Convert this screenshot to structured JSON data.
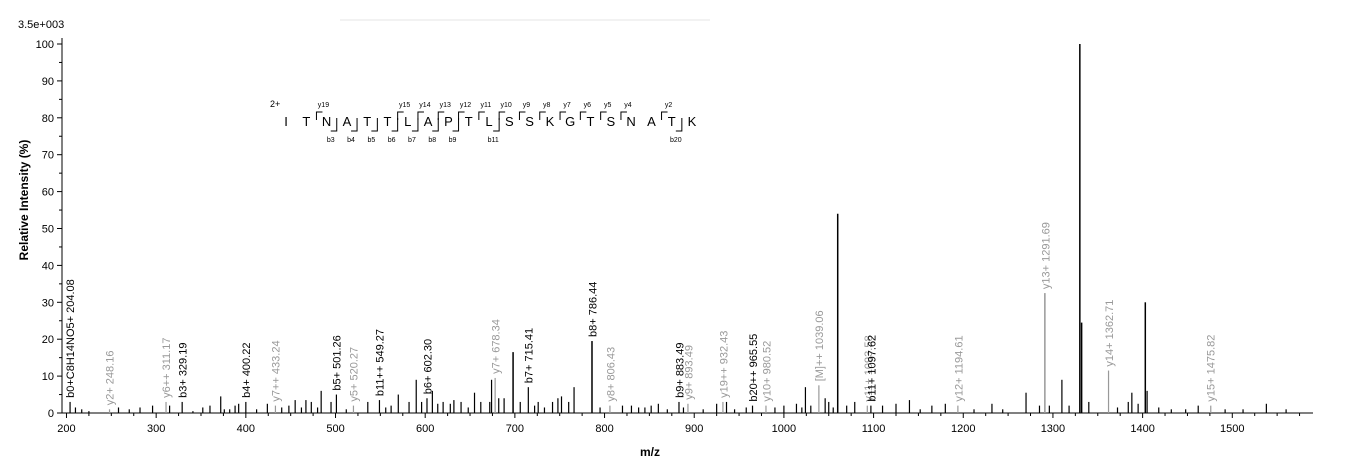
{
  "chart_data": {
    "type": "bar",
    "scale_label": "3.5e+003",
    "xlabel": "m/z",
    "ylabel": "Relative   Intensity (%)",
    "xlim": [
      195,
      1590
    ],
    "ylim": [
      0,
      100
    ],
    "xticks": [
      200,
      300,
      400,
      500,
      600,
      700,
      800,
      900,
      1000,
      1100,
      1200,
      1300,
      1400,
      1500
    ],
    "yticks": [
      0,
      10,
      20,
      30,
      40,
      50,
      60,
      70,
      80,
      90,
      100
    ],
    "colors": {
      "b_ion": "#000000",
      "y_ion": "#999999",
      "unlabeled": "#000000"
    },
    "peaks": [
      [
        204,
        3,
        "b"
      ],
      [
        210,
        1.5,
        "u"
      ],
      [
        217,
        1,
        "u"
      ],
      [
        225,
        0.5,
        "u"
      ],
      [
        248,
        1,
        "y"
      ],
      [
        258,
        1.5,
        "u"
      ],
      [
        270,
        1,
        "u"
      ],
      [
        282,
        1.5,
        "u"
      ],
      [
        296,
        2,
        "u"
      ],
      [
        311,
        3,
        "y"
      ],
      [
        315,
        2,
        "u"
      ],
      [
        329,
        3,
        "b"
      ],
      [
        341,
        0.5,
        "u"
      ],
      [
        352,
        1.5,
        "u"
      ],
      [
        360,
        2,
        "u"
      ],
      [
        372,
        4.5,
        "u"
      ],
      [
        376,
        1,
        "u"
      ],
      [
        382,
        1,
        "u"
      ],
      [
        388,
        2,
        "u"
      ],
      [
        392,
        2.5,
        "u"
      ],
      [
        400,
        3,
        "b"
      ],
      [
        412,
        1,
        "u"
      ],
      [
        424,
        2.5,
        "u"
      ],
      [
        433,
        2,
        "y"
      ],
      [
        440,
        1.5,
        "u"
      ],
      [
        448,
        2,
        "u"
      ],
      [
        455,
        3.5,
        "u"
      ],
      [
        462,
        1.5,
        "u"
      ],
      [
        467,
        3.5,
        "u"
      ],
      [
        473,
        3,
        "u"
      ],
      [
        480,
        1.5,
        "u"
      ],
      [
        484,
        6,
        "u"
      ],
      [
        495,
        3,
        "u"
      ],
      [
        501,
        5,
        "b"
      ],
      [
        512,
        1,
        "u"
      ],
      [
        520,
        2,
        "y"
      ],
      [
        536,
        3,
        "u"
      ],
      [
        549,
        3.5,
        "b"
      ],
      [
        556,
        1.5,
        "u"
      ],
      [
        562,
        2,
        "u"
      ],
      [
        570,
        5,
        "u"
      ],
      [
        582,
        3,
        "u"
      ],
      [
        590,
        9,
        "u"
      ],
      [
        596,
        3,
        "u"
      ],
      [
        602,
        4,
        "b"
      ],
      [
        608,
        6,
        "u"
      ],
      [
        614,
        2.5,
        "u"
      ],
      [
        620,
        3,
        "u"
      ],
      [
        628,
        2.5,
        "u"
      ],
      [
        632,
        3.5,
        "u"
      ],
      [
        640,
        3,
        "u"
      ],
      [
        648,
        1.5,
        "u"
      ],
      [
        655,
        5.5,
        "u"
      ],
      [
        662,
        3,
        "u"
      ],
      [
        672,
        3,
        "u"
      ],
      [
        674,
        9,
        "u"
      ],
      [
        678,
        9.5,
        "y"
      ],
      [
        682,
        4,
        "u"
      ],
      [
        688,
        4,
        "u"
      ],
      [
        698,
        16.5,
        "u"
      ],
      [
        706,
        3,
        "u"
      ],
      [
        715,
        7,
        "b"
      ],
      [
        722,
        2,
        "u"
      ],
      [
        726,
        3,
        "u"
      ],
      [
        733,
        1.5,
        "u"
      ],
      [
        742,
        3,
        "u"
      ],
      [
        748,
        4,
        "u"
      ],
      [
        752,
        4.5,
        "u"
      ],
      [
        760,
        3,
        "u"
      ],
      [
        766,
        7,
        "u"
      ],
      [
        786,
        19.5,
        "b"
      ],
      [
        795,
        1.5,
        "u"
      ],
      [
        806,
        2,
        "y"
      ],
      [
        820,
        2,
        "u"
      ],
      [
        830,
        2,
        "u"
      ],
      [
        838,
        1.5,
        "u"
      ],
      [
        845,
        1.5,
        "u"
      ],
      [
        852,
        2,
        "u"
      ],
      [
        860,
        2.5,
        "u"
      ],
      [
        870,
        1,
        "u"
      ],
      [
        883,
        3,
        "b"
      ],
      [
        888,
        1.5,
        "u"
      ],
      [
        893,
        2.5,
        "y"
      ],
      [
        910,
        1,
        "u"
      ],
      [
        925,
        2.5,
        "u"
      ],
      [
        932,
        3,
        "y"
      ],
      [
        936,
        3,
        "u"
      ],
      [
        945,
        1,
        "u"
      ],
      [
        958,
        1.5,
        "u"
      ],
      [
        965,
        2,
        "b"
      ],
      [
        980,
        2,
        "y"
      ],
      [
        990,
        1.5,
        "u"
      ],
      [
        1000,
        2,
        "u"
      ],
      [
        1014,
        2.5,
        "u"
      ],
      [
        1020,
        1.5,
        "u"
      ],
      [
        1024,
        7,
        "u"
      ],
      [
        1030,
        2,
        "u"
      ],
      [
        1039,
        7.5,
        "y"
      ],
      [
        1046,
        4,
        "u"
      ],
      [
        1050,
        3,
        "u"
      ],
      [
        1055,
        1.5,
        "u"
      ],
      [
        1060,
        54,
        "u"
      ],
      [
        1070,
        2,
        "u"
      ],
      [
        1079,
        3,
        "u"
      ],
      [
        1093,
        2,
        "y"
      ],
      [
        1097,
        2,
        "b"
      ],
      [
        1110,
        2,
        "u"
      ],
      [
        1125,
        2.5,
        "u"
      ],
      [
        1140,
        3.5,
        "u"
      ],
      [
        1152,
        1,
        "u"
      ],
      [
        1165,
        2,
        "u"
      ],
      [
        1180,
        2.5,
        "u"
      ],
      [
        1194,
        2,
        "y"
      ],
      [
        1212,
        1,
        "u"
      ],
      [
        1232,
        2.5,
        "u"
      ],
      [
        1244,
        1,
        "u"
      ],
      [
        1270,
        5.5,
        "u"
      ],
      [
        1285,
        2,
        "u"
      ],
      [
        1291,
        32.5,
        "y"
      ],
      [
        1296,
        2,
        "u"
      ],
      [
        1310,
        9,
        "u"
      ],
      [
        1318,
        2,
        "u"
      ],
      [
        1330,
        100,
        "u"
      ],
      [
        1332,
        24.5,
        "u"
      ],
      [
        1340,
        3,
        "u"
      ],
      [
        1362,
        11.5,
        "y"
      ],
      [
        1372,
        1.5,
        "u"
      ],
      [
        1384,
        3,
        "u"
      ],
      [
        1388,
        5.5,
        "u"
      ],
      [
        1395,
        2.5,
        "u"
      ],
      [
        1403,
        30,
        "u"
      ],
      [
        1405,
        6,
        "u"
      ],
      [
        1418,
        1.5,
        "u"
      ],
      [
        1432,
        1,
        "u"
      ],
      [
        1448,
        1,
        "u"
      ],
      [
        1462,
        2,
        "u"
      ],
      [
        1476,
        2,
        "y"
      ],
      [
        1492,
        1,
        "u"
      ],
      [
        1512,
        1,
        "u"
      ],
      [
        1538,
        2.5,
        "u"
      ],
      [
        1560,
        1,
        "u"
      ]
    ],
    "annotations": [
      {
        "mz": 204.08,
        "text": "b0+C8H14NO5+ 204.08",
        "type": "b"
      },
      {
        "mz": 248.16,
        "text": "y2+ 248.16",
        "type": "y"
      },
      {
        "mz": 311.17,
        "text": "y6++ 311.17",
        "type": "y"
      },
      {
        "mz": 329.19,
        "text": "b3+ 329.19",
        "type": "b"
      },
      {
        "mz": 400.22,
        "text": "b4+ 400.22",
        "type": "b"
      },
      {
        "mz": 433.24,
        "text": "y7++ 433.24",
        "type": "y"
      },
      {
        "mz": 501.26,
        "text": "b5+ 501.26",
        "type": "b"
      },
      {
        "mz": 520.27,
        "text": "y5+ 520.27",
        "type": "y"
      },
      {
        "mz": 549.27,
        "text": "b11++ 549.27",
        "type": "b"
      },
      {
        "mz": 602.3,
        "text": "b6+ 602.30",
        "type": "b"
      },
      {
        "mz": 678.34,
        "text": "y7+ 678.34",
        "type": "y"
      },
      {
        "mz": 715.41,
        "text": "b7+ 715.41",
        "type": "b"
      },
      {
        "mz": 786.44,
        "text": "b8+ 786.44",
        "type": "b"
      },
      {
        "mz": 806.43,
        "text": "y8+ 806.43",
        "type": "y"
      },
      {
        "mz": 883.49,
        "text": "b9+ 883.49",
        "type": "b"
      },
      {
        "mz": 893.49,
        "text": "y9+ 893.49",
        "type": "y"
      },
      {
        "mz": 932.43,
        "text": "y19++ 932.43",
        "type": "y"
      },
      {
        "mz": 965.55,
        "text": "b20++ 965.55",
        "type": "b"
      },
      {
        "mz": 980.52,
        "text": "y10+ 980.52",
        "type": "y"
      },
      {
        "mz": 1039.06,
        "text": "[M]++ 1039.06",
        "type": "y"
      },
      {
        "mz": 1093.58,
        "text": "y11+ 1093.58",
        "type": "y"
      },
      {
        "mz": 1097.62,
        "text": "b11+ 1097.62",
        "type": "b"
      },
      {
        "mz": 1194.61,
        "text": "y12+ 1194.61",
        "type": "y"
      },
      {
        "mz": 1291.69,
        "text": "y13+ 1291.69",
        "type": "y"
      },
      {
        "mz": 1362.71,
        "text": "y14+ 1362.71",
        "type": "y"
      },
      {
        "mz": 1475.82,
        "text": "y15+ 1475.82",
        "type": "y"
      }
    ],
    "sequence": {
      "charge": "2+",
      "residues": [
        "I",
        "T",
        "N",
        "A",
        "T",
        "T",
        "L",
        "A",
        "P",
        "T",
        "L",
        "S",
        "S",
        "K",
        "G",
        "T",
        "S",
        "N",
        "A",
        "T",
        "K"
      ],
      "y_ions": [
        {
          "after": 2,
          "label": "y19"
        },
        {
          "after": 6,
          "label": "y15"
        },
        {
          "after": 7,
          "label": "y14"
        },
        {
          "after": 8,
          "label": "y13"
        },
        {
          "after": 9,
          "label": "y12"
        },
        {
          "after": 10,
          "label": "y11"
        },
        {
          "after": 11,
          "label": "y10"
        },
        {
          "after": 12,
          "label": "y9"
        },
        {
          "after": 13,
          "label": "y8"
        },
        {
          "after": 14,
          "label": "y7"
        },
        {
          "after": 15,
          "label": "y6"
        },
        {
          "after": 16,
          "label": "y5"
        },
        {
          "after": 17,
          "label": "y4"
        },
        {
          "after": 19,
          "label": "y2"
        }
      ],
      "b_ions": [
        {
          "after": 3,
          "label": "b3"
        },
        {
          "after": 4,
          "label": "b4"
        },
        {
          "after": 5,
          "label": "b5"
        },
        {
          "after": 6,
          "label": "b6"
        },
        {
          "after": 7,
          "label": "b7"
        },
        {
          "after": 8,
          "label": "b8"
        },
        {
          "after": 9,
          "label": "b9"
        },
        {
          "after": 11,
          "label": "b11"
        },
        {
          "after": 20,
          "label": "b20"
        }
      ]
    }
  }
}
